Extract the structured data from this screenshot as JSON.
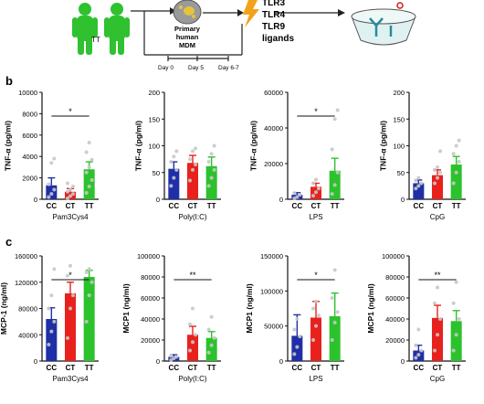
{
  "colors": {
    "CC": "#1f2fa8",
    "CT": "#e8211d",
    "TT": "#2cc22c",
    "point": "#c8c8c8",
    "human": "#2fc12f",
    "lightning": "#f2a21a",
    "arrow": "#222222"
  },
  "schematic": {
    "human_label": "TT",
    "cell_label": [
      "Primary",
      "human",
      "MDM"
    ],
    "ligand_labels": [
      "TLR3",
      "TLR4",
      "TLR9",
      "ligands"
    ],
    "timeline_labels": [
      "Day 0",
      "Day 5",
      "Day 6-7"
    ]
  },
  "panel_labels": {
    "b": "b",
    "c": "c"
  },
  "chart_data": [
    {
      "type": "bar",
      "panel": "b",
      "categories": [
        "CC",
        "CT",
        "TT"
      ],
      "values": [
        1300,
        700,
        2800
      ],
      "errors": [
        700,
        300,
        700
      ],
      "points": [
        [
          200,
          500,
          900,
          1400,
          3400,
          3800
        ],
        [
          100,
          300,
          500,
          700,
          900,
          1200,
          1500
        ],
        [
          600,
          1200,
          1800,
          2500,
          3000,
          3700,
          4400,
          5300
        ]
      ],
      "ylabel": "TNF-α (pg/ml)",
      "xlabel": "Pam3Cys4",
      "ylim": [
        0,
        10000
      ],
      "yticks": [
        0,
        2000,
        4000,
        6000,
        8000,
        10000
      ],
      "significance": [
        {
          "from": "CC",
          "to": "TT",
          "label": "*"
        }
      ]
    },
    {
      "type": "bar",
      "panel": "b",
      "categories": [
        "CC",
        "CT",
        "TT"
      ],
      "values": [
        57,
        68,
        62
      ],
      "errors": [
        13,
        14,
        17
      ],
      "points": [
        [
          25,
          40,
          55,
          70,
          80,
          90
        ],
        [
          35,
          55,
          65,
          75,
          90,
          95
        ],
        [
          25,
          40,
          55,
          70,
          85,
          100
        ]
      ],
      "ylabel": "TNF-α (pg/ml)",
      "xlabel": "Poly(I:C)",
      "ylim": [
        0,
        200
      ],
      "yticks": [
        0,
        50,
        100,
        150,
        200
      ],
      "significance": []
    },
    {
      "type": "bar",
      "panel": "b",
      "categories": [
        "CC",
        "CT",
        "TT"
      ],
      "values": [
        2500,
        7000,
        16000
      ],
      "errors": [
        1200,
        2000,
        7000
      ],
      "points": [
        [
          500,
          1200,
          2500,
          3500
        ],
        [
          2000,
          4000,
          6000,
          9000,
          11000
        ],
        [
          3000,
          8000,
          15000,
          28000,
          45000,
          50000
        ]
      ],
      "ylabel": "TNF-α (pg/ml)",
      "xlabel": "LPS",
      "ylim": [
        0,
        60000
      ],
      "yticks": [
        0,
        20000,
        40000,
        60000
      ],
      "significance": [
        {
          "from": "CC",
          "to": "TT",
          "label": "*"
        }
      ]
    },
    {
      "type": "bar",
      "panel": "b",
      "categories": [
        "CC",
        "CT",
        "TT"
      ],
      "values": [
        30,
        45,
        65
      ],
      "errors": [
        6,
        10,
        15
      ],
      "points": [
        [
          20,
          25,
          30,
          35,
          40
        ],
        [
          30,
          40,
          50,
          55,
          60,
          90
        ],
        [
          30,
          50,
          70,
          85,
          100,
          110
        ]
      ],
      "ylabel": "TNF-α (pg/ml)",
      "xlabel": "CpG",
      "ylim": [
        0,
        200
      ],
      "yticks": [
        0,
        50,
        100,
        150,
        200
      ],
      "significance": []
    },
    {
      "type": "bar",
      "panel": "c",
      "categories": [
        "CC",
        "CT",
        "TT"
      ],
      "values": [
        64000,
        103000,
        128000
      ],
      "errors": [
        17000,
        17000,
        10000
      ],
      "points": [
        [
          25000,
          45000,
          60000,
          80000,
          100000,
          140000
        ],
        [
          35000,
          80000,
          100000,
          130000,
          145000
        ],
        [
          60000,
          100000,
          120000,
          135000,
          140000
        ]
      ],
      "ylabel": "MCP-1 (ng/ml)",
      "xlabel": "Pam3Cys4",
      "ylim": [
        0,
        160000
      ],
      "yticks": [
        0,
        40000,
        80000,
        120000,
        160000
      ],
      "significance": [
        {
          "from": "CC",
          "to": "TT",
          "label": "*"
        }
      ]
    },
    {
      "type": "bar",
      "panel": "c",
      "categories": [
        "CC",
        "CT",
        "TT"
      ],
      "values": [
        4000,
        25000,
        22000
      ],
      "errors": [
        2000,
        8000,
        6000
      ],
      "points": [
        [
          1000,
          2500,
          4000,
          5000
        ],
        [
          10000,
          18000,
          25000,
          35000,
          50000
        ],
        [
          8000,
          15000,
          22000,
          30000,
          42000
        ]
      ],
      "ylabel": "MCP1 (ng/ml)",
      "xlabel": "Poly(I:C)",
      "ylim": [
        0,
        100000
      ],
      "yticks": [
        0,
        20000,
        40000,
        60000,
        80000,
        100000
      ],
      "significance": [
        {
          "from": "CC",
          "to": "TT",
          "label": "**"
        }
      ]
    },
    {
      "type": "bar",
      "panel": "c",
      "categories": [
        "CC",
        "CT",
        "TT"
      ],
      "values": [
        36000,
        62000,
        64000
      ],
      "errors": [
        30000,
        23000,
        33000
      ],
      "points": [
        [
          10000,
          20000,
          35000,
          45000,
          60000
        ],
        [
          30000,
          50000,
          65000,
          75000,
          85000
        ],
        [
          30000,
          55000,
          70000,
          90000,
          130000
        ]
      ],
      "ylabel": "MCP1 (ng/ml)",
      "xlabel": "LPS",
      "ylim": [
        0,
        150000
      ],
      "yticks": [
        0,
        50000,
        100000,
        150000
      ],
      "significance": [
        {
          "from": "CC",
          "to": "TT",
          "label": "*"
        }
      ]
    },
    {
      "type": "bar",
      "panel": "c",
      "categories": [
        "CC",
        "CT",
        "TT"
      ],
      "values": [
        10000,
        41000,
        38000
      ],
      "errors": [
        5000,
        12000,
        10000
      ],
      "points": [
        [
          3000,
          6000,
          10000,
          15000,
          30000
        ],
        [
          10000,
          25000,
          40000,
          55000,
          70000
        ],
        [
          10000,
          25000,
          40000,
          55000,
          75000
        ]
      ],
      "ylabel": "MCP1 (ng/ml)",
      "xlabel": "CpG",
      "ylim": [
        0,
        100000
      ],
      "yticks": [
        0,
        20000,
        40000,
        60000,
        80000,
        100000
      ],
      "significance": [
        {
          "from": "CC",
          "to": "TT",
          "label": "**"
        }
      ]
    }
  ]
}
